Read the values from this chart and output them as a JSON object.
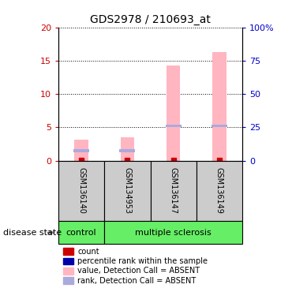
{
  "title": "GDS2978 / 210693_at",
  "samples": [
    "GSM136140",
    "GSM134953",
    "GSM136147",
    "GSM136149"
  ],
  "groups": [
    "control",
    "multiple sclerosis",
    "multiple sclerosis",
    "multiple sclerosis"
  ],
  "ylim_left": [
    0,
    20
  ],
  "ylim_right": [
    0,
    100
  ],
  "yticks_left": [
    0,
    5,
    10,
    15,
    20
  ],
  "yticks_right": [
    0,
    25,
    50,
    75,
    100
  ],
  "ytick_labels_right": [
    "0",
    "25",
    "50",
    "75",
    "100%"
  ],
  "pink_bar_values": [
    3.1,
    3.5,
    14.3,
    16.3
  ],
  "blue_marker_values": [
    1.5,
    1.5,
    5.2,
    5.2
  ],
  "red_dot_values": [
    0.05,
    0.05,
    0.05,
    0.05
  ],
  "bar_color_pink": "#FFB6C1",
  "marker_color_blue": "#7777BB",
  "marker_color_light_blue": "#AAAADD",
  "dot_color_red": "#CC0000",
  "label_color_left": "#CC0000",
  "label_color_right": "#0000CC",
  "sample_box_color": "#CCCCCC",
  "green_color": "#66EE66",
  "arrow_color": "#888888",
  "disease_state_label": "disease state",
  "legend_items": [
    {
      "label": "count",
      "color": "#CC0000"
    },
    {
      "label": "percentile rank within the sample",
      "color": "#0000AA"
    },
    {
      "label": "value, Detection Call = ABSENT",
      "color": "#FFB6C1"
    },
    {
      "label": "rank, Detection Call = ABSENT",
      "color": "#AAAADD"
    }
  ],
  "bar_width": 0.3,
  "blue_bar_height": 0.4,
  "red_marker_size": 4
}
